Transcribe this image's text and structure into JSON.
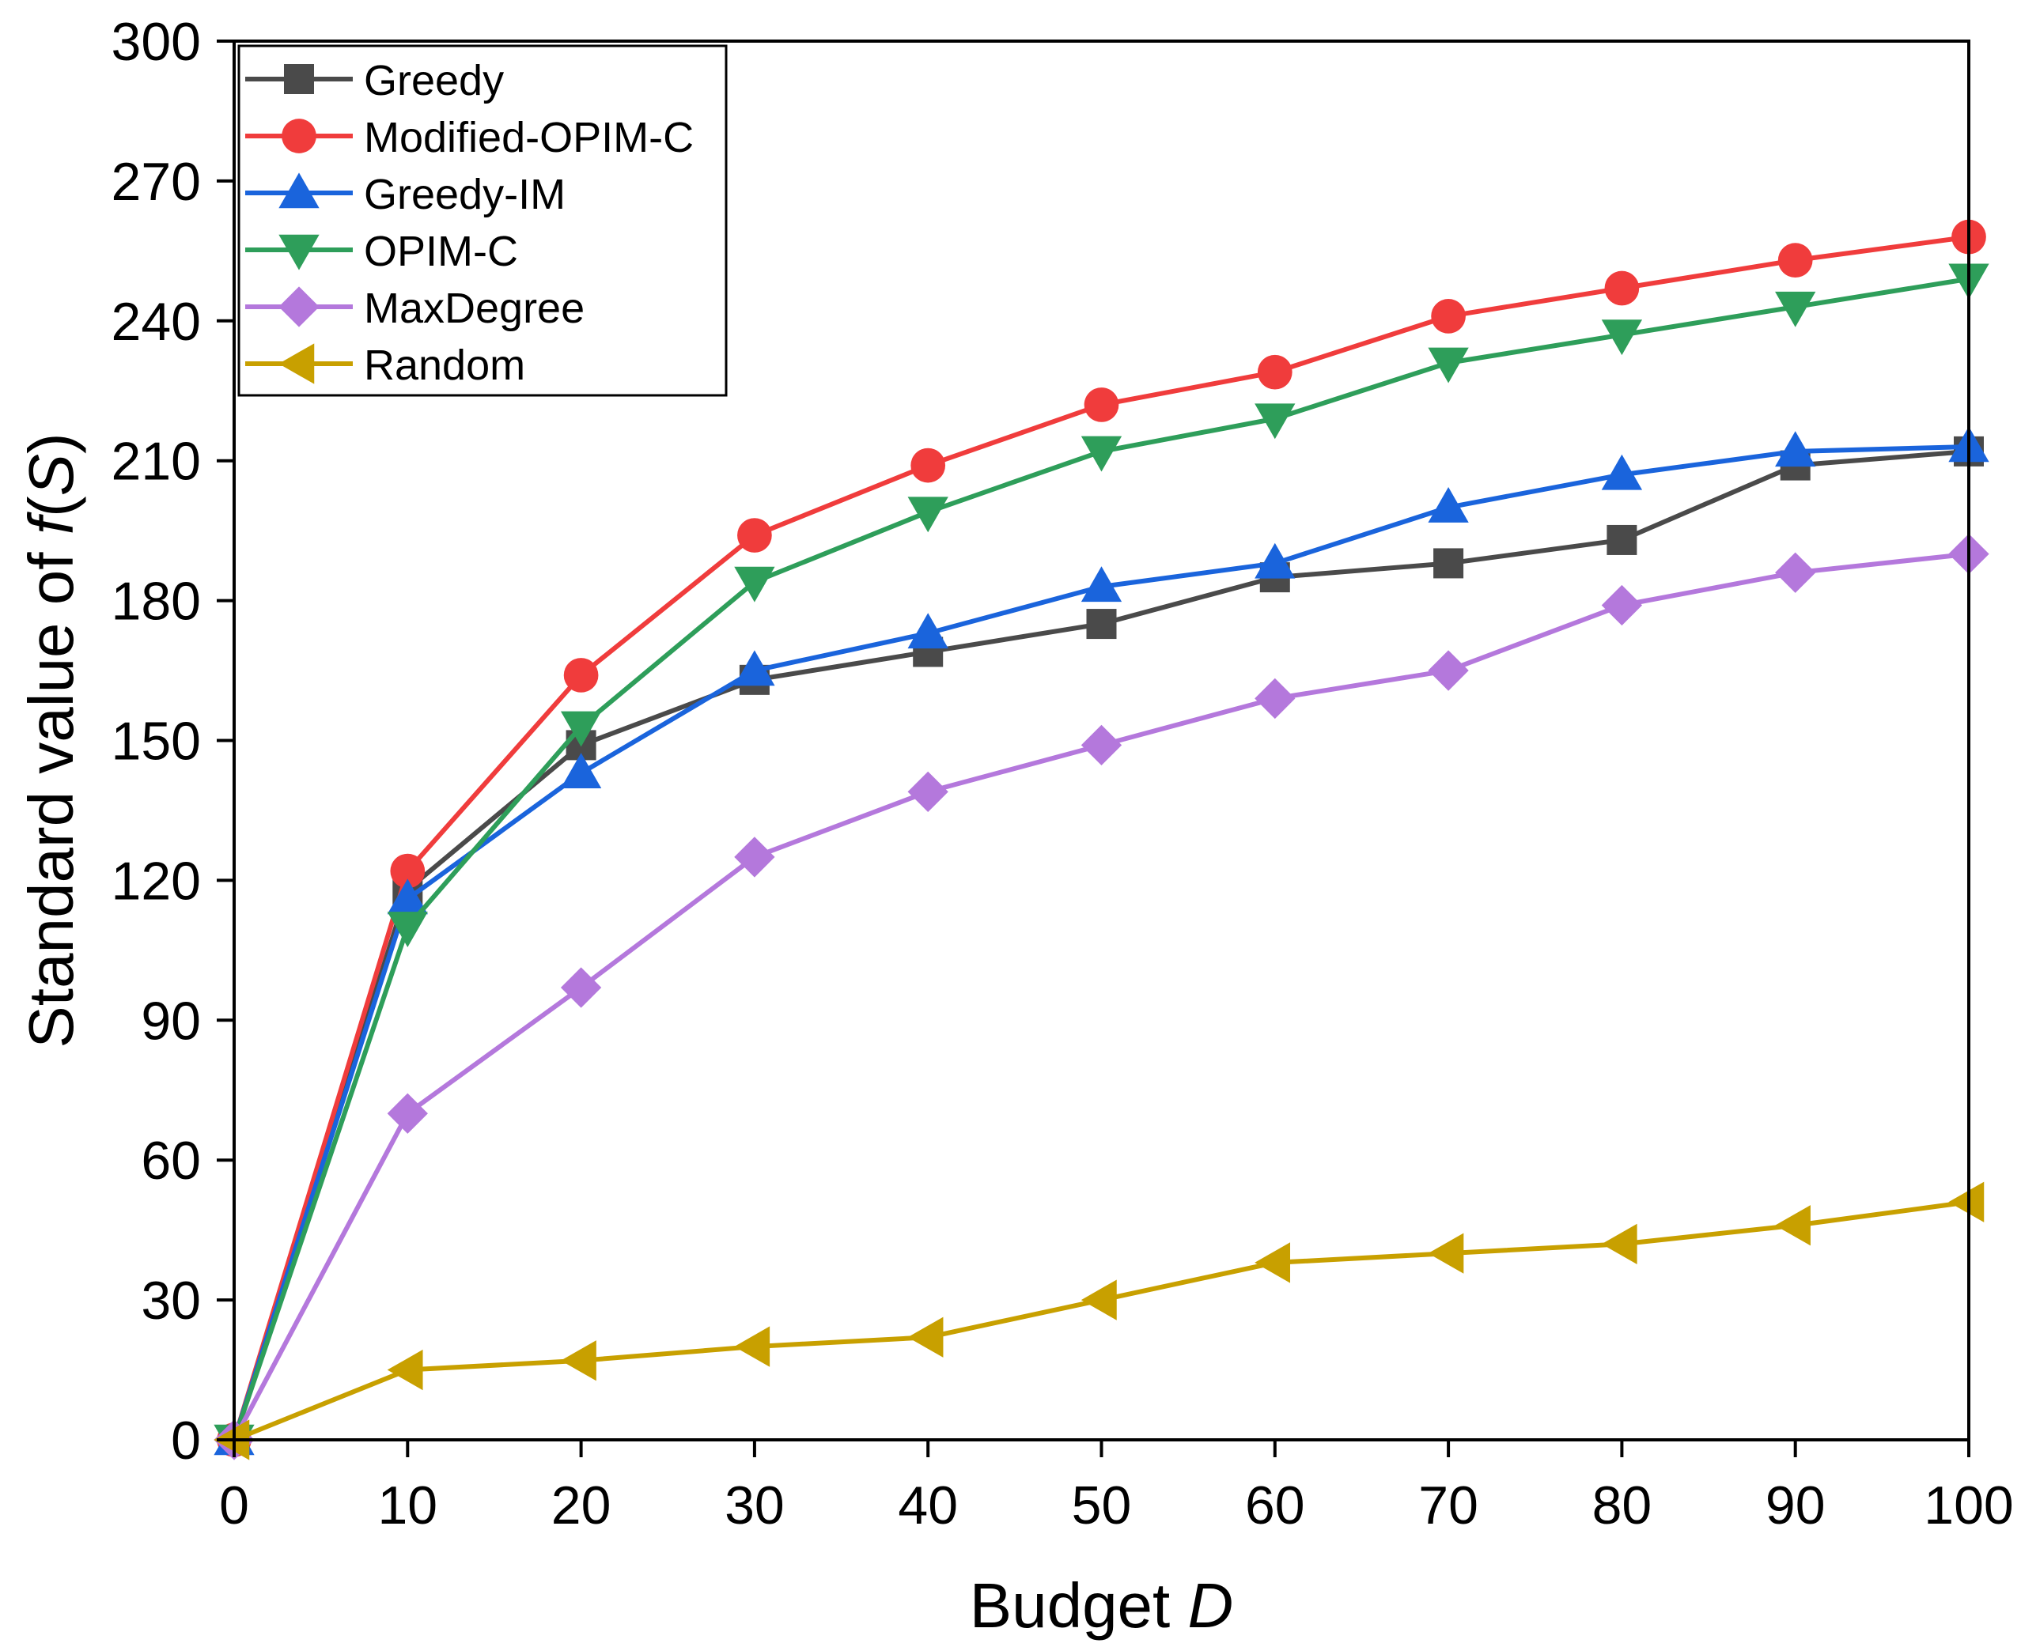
{
  "chart_data": {
    "type": "line",
    "title": "",
    "xlabel": {
      "prefix": "Budget ",
      "italic": "D",
      "suffix": ""
    },
    "ylabel": {
      "prefix": "Standard value of ",
      "italic": "f",
      "suffix": "(S)",
      "italic2": "S"
    },
    "xlim": [
      0,
      100
    ],
    "ylim": [
      0,
      300
    ],
    "x_ticks": [
      0,
      10,
      20,
      30,
      40,
      50,
      60,
      70,
      80,
      90,
      100
    ],
    "y_ticks": [
      0,
      30,
      60,
      90,
      120,
      150,
      180,
      210,
      240,
      270,
      300
    ],
    "x": [
      0,
      10,
      20,
      30,
      40,
      50,
      60,
      70,
      80,
      90,
      100
    ],
    "grid": false,
    "legend_position": "top-left",
    "series": [
      {
        "name": "Greedy",
        "color": "#4a4a4a",
        "marker": "square",
        "values": [
          0,
          118,
          149,
          163,
          169,
          175,
          185,
          188,
          193,
          209,
          212
        ]
      },
      {
        "name": "Modified-OPIM-C",
        "color": "#f03c3c",
        "marker": "circle",
        "values": [
          0,
          122,
          164,
          194,
          209,
          222,
          229,
          241,
          247,
          253,
          258
        ]
      },
      {
        "name": "Greedy-IM",
        "color": "#1a64dc",
        "marker": "triangle-up",
        "values": [
          0,
          116,
          143,
          165,
          173,
          183,
          188,
          200,
          207,
          212,
          213
        ]
      },
      {
        "name": "OPIM-C",
        "color": "#2e9e5a",
        "marker": "triangle-down",
        "values": [
          0,
          110,
          153,
          184,
          199,
          212,
          219,
          231,
          237,
          243,
          249
        ]
      },
      {
        "name": "MaxDegree",
        "color": "#b478dc",
        "marker": "diamond",
        "values": [
          0,
          70,
          97,
          125,
          139,
          149,
          159,
          165,
          179,
          186,
          190
        ]
      },
      {
        "name": "Random",
        "color": "#c8a000",
        "marker": "triangle-left",
        "values": [
          0,
          15,
          17,
          20,
          22,
          30,
          38,
          40,
          42,
          46,
          51
        ]
      }
    ]
  }
}
